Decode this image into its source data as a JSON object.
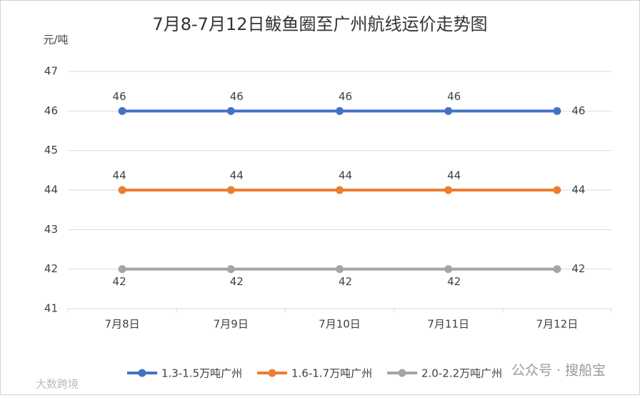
{
  "chart_data": {
    "type": "line",
    "title": "7月8-7月12日鲅鱼圈至广州航线运价走势图",
    "y_label": "元/吨",
    "categories": [
      "7月8日",
      "7月9日",
      "7月10日",
      "7月11日",
      "7月12日"
    ],
    "series": [
      {
        "name": "1.3-1.5万吨广州",
        "color": "#4472c4",
        "values": [
          46,
          46,
          46,
          46,
          46
        ]
      },
      {
        "name": "1.6-1.7万吨广州",
        "color": "#ed7d31",
        "values": [
          44,
          44,
          44,
          44,
          44
        ]
      },
      {
        "name": "2.0-2.2万吨广州",
        "color": "#a5a5a5",
        "values": [
          42,
          42,
          42,
          42,
          42
        ]
      }
    ],
    "ylim": [
      41,
      47
    ],
    "yticks": [
      41,
      42,
      43,
      44,
      45,
      46,
      47
    ],
    "grid": true,
    "legend": "bottom",
    "watermarks": [
      "公众号 · 搜船宝",
      "大数跨境"
    ]
  }
}
